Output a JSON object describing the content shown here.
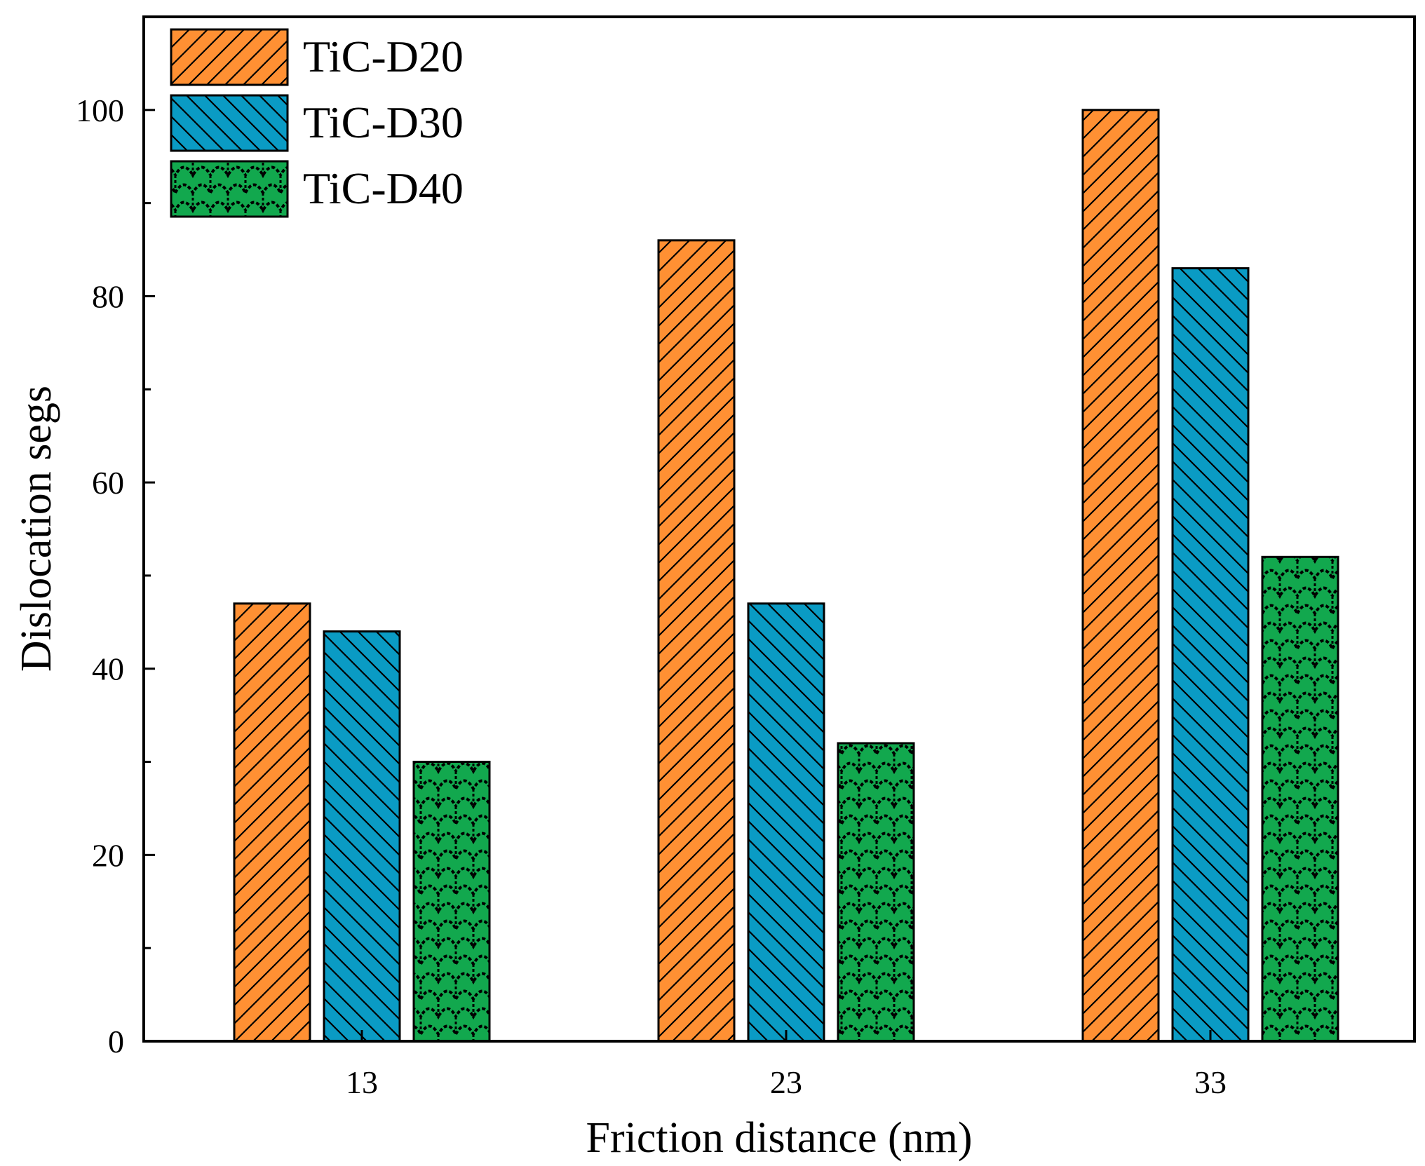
{
  "chart_data": {
    "type": "bar",
    "title": "",
    "xlabel": "Friction distance (nm)",
    "ylabel": "Dislocation segs",
    "categories": [
      "13",
      "23",
      "33"
    ],
    "series": [
      {
        "name": "TiC-D20",
        "values": [
          47,
          86,
          100
        ],
        "color": "#FF9033",
        "pattern": "diagonal-up"
      },
      {
        "name": "TiC-D30",
        "values": [
          44,
          47,
          83
        ],
        "color": "#0A9BC4",
        "pattern": "diagonal-down"
      },
      {
        "name": "TiC-D40",
        "values": [
          30,
          32,
          52
        ],
        "color": "#12A84E",
        "pattern": "scale"
      }
    ],
    "ylim": [
      0,
      110
    ],
    "yticks": [
      0,
      20,
      40,
      60,
      80,
      100
    ],
    "yticks_minor": [
      10,
      30,
      50,
      70,
      90
    ],
    "grid": false,
    "legend_position": "top-left"
  }
}
